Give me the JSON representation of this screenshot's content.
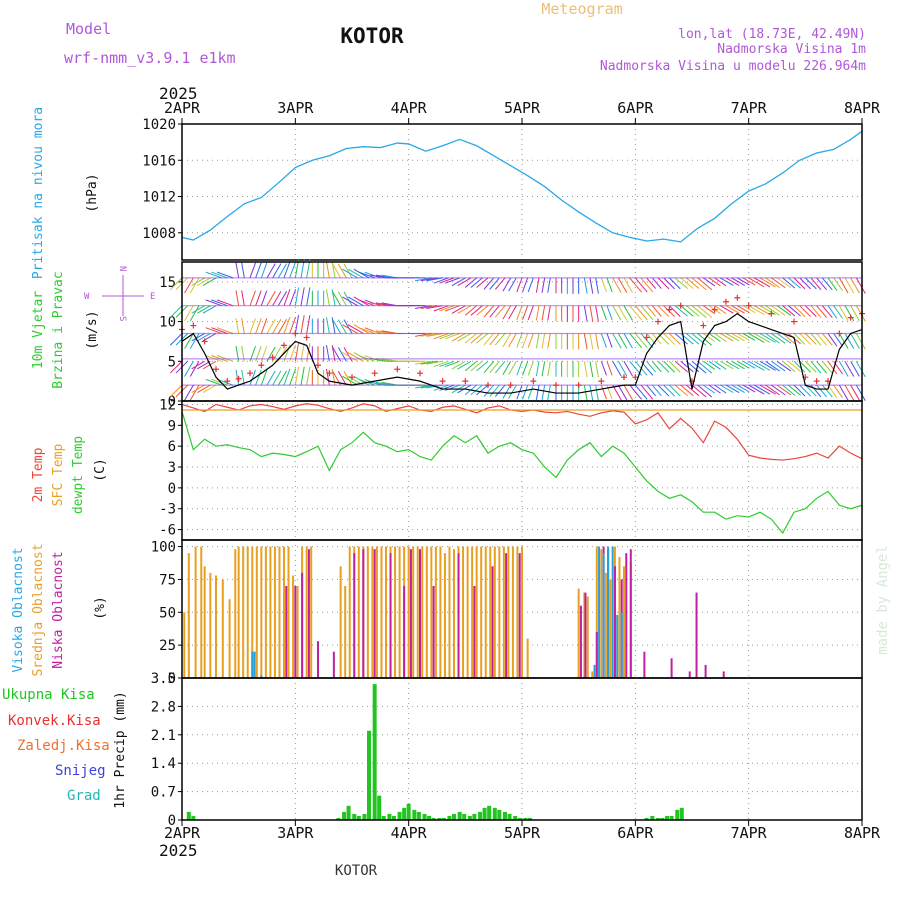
{
  "header": {
    "model_label": "Model",
    "model_name": "wrf-nmm_v3.9.1 e1km",
    "station_title": "KOTOR",
    "meteogram_label": "Meteogram",
    "coords": "lon,lat (18.73E, 42.49N)",
    "altitude": "Nadmorska Visina 1m",
    "model_altitude": "Nadmorska Visina u modelu 226.964m"
  },
  "footer": {
    "station_name": "KOTOR",
    "credit": "made by Angel"
  },
  "time_axis": {
    "year": "2025",
    "ticks": [
      "2APR",
      "3APR",
      "4APR",
      "5APR",
      "6APR",
      "7APR",
      "8APR"
    ]
  },
  "colors": {
    "pressure": "#29a8e8",
    "temp2m": "#e8473a",
    "sfc_temp": "#e8a02a",
    "dewpt": "#2ecc2e",
    "cloud_high": "#2a9fd8",
    "cloud_mid": "#e8a020",
    "cloud_low": "#c020a0",
    "precip_total": "#22c422",
    "precip_conv": "#e83030",
    "precip_frozen": "#f07030",
    "snow": "#4040e0",
    "hail": "#20b8b8"
  },
  "chart_data": [
    {
      "type": "line",
      "panel": "pressure",
      "title": "",
      "ylabel_name": "Pritisak na nivou mora",
      "ylabel_unit": "(hPa)",
      "ylim": [
        1005,
        1020
      ],
      "y_ticks": [
        "1008",
        "1012",
        "1016",
        "1020"
      ],
      "x": [
        0,
        0.1,
        0.25,
        0.4,
        0.55,
        0.7,
        0.85,
        1.0,
        1.15,
        1.3,
        1.45,
        1.6,
        1.75,
        1.9,
        2.0,
        2.15,
        2.3,
        2.45,
        2.6,
        2.75,
        2.9,
        3.05,
        3.2,
        3.35,
        3.5,
        3.65,
        3.8,
        3.95,
        4.1,
        4.25,
        4.4,
        4.55,
        4.7,
        4.85,
        5.0,
        5.15,
        5.3,
        5.45,
        5.6,
        5.75,
        5.9,
        6.0
      ],
      "series": [
        {
          "values": [
            1007.5,
            1007.2,
            1008.3,
            1009.8,
            1011.2,
            1011.9,
            1013.5,
            1015.2,
            1016.0,
            1016.5,
            1017.3,
            1017.5,
            1017.4,
            1017.9,
            1017.8,
            1017.0,
            1017.6,
            1018.3,
            1017.6,
            1016.5,
            1015.4,
            1014.3,
            1013.1,
            1011.6,
            1010.3,
            1009.1,
            1008.0,
            1007.5,
            1007.1,
            1007.3,
            1007.0,
            1008.5,
            1009.6,
            1011.2,
            1012.6,
            1013.4,
            1014.6,
            1016.0,
            1016.8,
            1017.2,
            1018.3,
            1019.2
          ]
        }
      ]
    },
    {
      "type": "line",
      "panel": "wind",
      "ylabel_name": "10m Vjetar",
      "ylabel_sub": "Brzina i Pravac",
      "ylabel_unit": "(m/s)",
      "compass_n": "N",
      "compass_s": "S",
      "compass_w": "W",
      "compass_e": "E",
      "ylim": [
        0,
        17.5
      ],
      "y_ticks": [
        "0",
        "5",
        "10",
        "15"
      ],
      "x": [
        0,
        0.1,
        0.2,
        0.3,
        0.4,
        0.5,
        0.6,
        0.7,
        0.8,
        0.9,
        1.0,
        1.1,
        1.2,
        1.3,
        1.5,
        1.7,
        1.9,
        2.1,
        2.3,
        2.5,
        2.7,
        2.9,
        3.1,
        3.3,
        3.5,
        3.7,
        3.9,
        4.0,
        4.1,
        4.2,
        4.3,
        4.4,
        4.5,
        4.6,
        4.7,
        4.8,
        4.9,
        5.0,
        5.2,
        5.4,
        5.5,
        5.6,
        5.7,
        5.8,
        5.9,
        6.0
      ],
      "series": [
        {
          "name": "",
          "values": [
            7.5,
            8.5,
            6.0,
            3.0,
            1.5,
            2.0,
            2.5,
            3.5,
            4.5,
            6.0,
            7.5,
            7.0,
            3.5,
            2.5,
            2.0,
            2.5,
            3.0,
            2.5,
            1.5,
            1.5,
            1.0,
            1.0,
            1.5,
            1.0,
            1.0,
            1.5,
            2.0,
            2.0,
            6.0,
            8.0,
            9.5,
            10.0,
            1.5,
            7.5,
            9.5,
            10.0,
            11.0,
            10.0,
            9.0,
            8.0,
            2.0,
            1.5,
            1.5,
            6.5,
            8.5,
            9.0
          ]
        }
      ],
      "gust_values": [
        9.0,
        9.5,
        7.5,
        4.0,
        2.5,
        2.8,
        3.5,
        4.5,
        5.5,
        7.0,
        8.5,
        8.0,
        4.5,
        3.5,
        3.0,
        3.5,
        4.0,
        3.5,
        2.5,
        2.5,
        2.0,
        2.0,
        2.5,
        2.0,
        2.0,
        2.5,
        3.0,
        3.0,
        8.0,
        10.0,
        11.5,
        12.0,
        2.5,
        9.5,
        11.5,
        12.5,
        13.0,
        12.0,
        11.0,
        10.0,
        3.0,
        2.5,
        2.5,
        8.5,
        10.5,
        11.0
      ],
      "barb_directions_deg": [
        135,
        120,
        150,
        200,
        260,
        290,
        300,
        290,
        280,
        270,
        260,
        240,
        210,
        200,
        190,
        180,
        180,
        170,
        160,
        150,
        140,
        130,
        120,
        110,
        100,
        90,
        90,
        80,
        70,
        60,
        50,
        50,
        45,
        40,
        40,
        35,
        30,
        30,
        30,
        35,
        40,
        45,
        50,
        55,
        60,
        60
      ]
    },
    {
      "type": "line",
      "panel": "temperature",
      "ylabel_name_1": "2m Temp",
      "ylabel_name_2": "SFC Temp",
      "ylabel_name_3": "dewpt Temp",
      "ylabel_unit": "(C)",
      "ylim": [
        -7.5,
        12.5
      ],
      "y_ticks": [
        "-6",
        "-3",
        "0",
        "3",
        "6",
        "9",
        "12"
      ],
      "x": [
        0,
        0.1,
        0.2,
        0.3,
        0.4,
        0.5,
        0.6,
        0.7,
        0.8,
        0.9,
        1.0,
        1.1,
        1.2,
        1.3,
        1.4,
        1.5,
        1.6,
        1.7,
        1.8,
        1.9,
        2.0,
        2.1,
        2.2,
        2.3,
        2.4,
        2.5,
        2.6,
        2.7,
        2.8,
        2.9,
        3.0,
        3.1,
        3.2,
        3.3,
        3.4,
        3.5,
        3.6,
        3.7,
        3.8,
        3.9,
        4.0,
        4.1,
        4.2,
        4.3,
        4.4,
        4.5,
        4.6,
        4.7,
        4.8,
        4.9,
        5.0,
        5.1,
        5.2,
        5.3,
        5.4,
        5.5,
        5.6,
        5.7,
        5.8,
        5.9,
        6.0
      ],
      "series": [
        {
          "name": "2m Temp",
          "values": [
            12.0,
            11.5,
            11.0,
            12.0,
            11.6,
            11.2,
            11.8,
            12.0,
            11.7,
            11.3,
            11.8,
            12.1,
            11.9,
            11.4,
            11.0,
            11.5,
            12.1,
            11.8,
            11.0,
            11.4,
            11.8,
            11.2,
            11.0,
            11.6,
            11.8,
            11.3,
            10.8,
            11.5,
            11.8,
            11.2,
            11.0,
            11.2,
            10.9,
            10.8,
            11.0,
            10.6,
            10.3,
            10.8,
            11.1,
            10.9,
            9.2,
            9.8,
            10.8,
            8.5,
            10.0,
            8.6,
            6.5,
            9.6,
            8.7,
            7.0,
            4.7,
            4.3,
            4.1,
            4.0,
            4.2,
            4.5,
            5.0,
            4.3,
            6.0,
            5.0,
            4.2
          ]
        },
        {
          "name": "SFC Temp",
          "values": [
            11.2,
            11.2,
            11.2,
            11.2,
            11.2,
            11.2,
            11.2,
            11.2,
            11.2,
            11.2,
            11.2,
            11.2,
            11.2,
            11.2,
            11.2,
            11.2,
            11.2,
            11.2,
            11.2,
            11.2,
            11.2,
            11.2,
            11.2,
            11.2,
            11.2,
            11.2,
            11.2,
            11.2,
            11.2,
            11.2,
            11.2,
            11.2,
            11.2,
            11.2,
            11.2,
            11.2,
            11.2,
            11.2,
            11.2,
            11.2,
            11.2,
            11.2,
            11.2,
            11.2,
            11.2,
            11.2,
            11.2,
            11.2,
            11.2,
            11.2,
            11.2,
            11.2,
            11.2,
            11.2,
            11.2,
            11.2,
            11.2,
            11.2,
            11.2,
            11.2,
            11.2
          ]
        },
        {
          "name": "dewpt Temp",
          "values": [
            11.0,
            5.5,
            7.0,
            6.0,
            6.2,
            5.8,
            5.5,
            4.5,
            5.0,
            4.8,
            4.5,
            5.2,
            6.0,
            2.5,
            5.5,
            6.5,
            8.0,
            6.5,
            6.0,
            5.2,
            5.5,
            4.5,
            4.0,
            6.0,
            7.5,
            6.5,
            7.5,
            5.0,
            6.0,
            6.5,
            5.5,
            5.0,
            3.0,
            1.5,
            4.0,
            5.5,
            6.5,
            4.5,
            6.0,
            5.0,
            3.0,
            1.0,
            -0.5,
            -1.5,
            -1.0,
            -2.0,
            -3.5,
            -3.5,
            -4.5,
            -4.0,
            -4.2,
            -3.5,
            -4.5,
            -6.5,
            -3.5,
            -3.0,
            -1.5,
            -0.5,
            -2.5,
            -3.0,
            -2.5
          ]
        }
      ]
    },
    {
      "type": "bar",
      "panel": "cloud",
      "ylabel_name_1": "Visoka Oblacnost",
      "ylabel_name_2": "Srednja Oblacnost",
      "ylabel_name_3": "Niska Oblacnost",
      "ylabel_unit": "(%)",
      "ylim": [
        0,
        105
      ],
      "y_ticks": [
        "0",
        "25",
        "50",
        "75",
        "100"
      ],
      "series": [
        {
          "name": "mid",
          "x": [
            0.02,
            0.06,
            0.12,
            0.17,
            0.2,
            0.25,
            0.3,
            0.36,
            0.42,
            0.47,
            0.5,
            0.54,
            0.58,
            0.62,
            0.66,
            0.7,
            0.74,
            0.78,
            0.82,
            0.86,
            0.9,
            0.94,
            0.98,
            1.02,
            1.06,
            1.1,
            1.14,
            1.4,
            1.44,
            1.48,
            1.52,
            1.56,
            1.6,
            1.64,
            1.68,
            1.72,
            1.76,
            1.8,
            1.84,
            1.88,
            1.92,
            1.96,
            2.0,
            2.04,
            2.08,
            2.12,
            2.16,
            2.2,
            2.24,
            2.28,
            2.32,
            2.36,
            2.4,
            2.44,
            2.48,
            2.52,
            2.56,
            2.6,
            2.64,
            2.68,
            2.72,
            2.76,
            2.8,
            2.84,
            2.88,
            2.92,
            2.96,
            3.0,
            3.05,
            3.5,
            3.55,
            3.58,
            3.62,
            3.66,
            3.7,
            3.74,
            3.78,
            3.82,
            3.86,
            3.9,
            3.96
          ],
          "values": [
            50,
            95,
            100,
            100,
            85,
            80,
            78,
            75,
            60,
            98,
            100,
            100,
            100,
            100,
            100,
            100,
            100,
            100,
            100,
            100,
            100,
            100,
            78,
            70,
            100,
            100,
            100,
            85,
            70,
            100,
            100,
            100,
            100,
            100,
            100,
            100,
            100,
            100,
            100,
            100,
            100,
            100,
            100,
            100,
            100,
            100,
            100,
            100,
            100,
            100,
            95,
            100,
            98,
            100,
            100,
            100,
            100,
            100,
            100,
            100,
            100,
            100,
            100,
            100,
            100,
            100,
            100,
            100,
            30,
            68,
            65,
            62,
            5,
            100,
            98,
            80,
            75,
            100,
            92,
            85,
            88
          ]
        },
        {
          "name": "low",
          "x": [
            0.64,
            0.92,
            1.0,
            1.06,
            1.12,
            1.2,
            1.34,
            1.52,
            1.6,
            1.7,
            1.84,
            1.96,
            2.02,
            2.1,
            2.22,
            2.44,
            2.58,
            2.74,
            2.86,
            2.98,
            3.52,
            3.56,
            3.66,
            3.72,
            3.76,
            3.82,
            3.88,
            3.92,
            3.96,
            4.08,
            4.32,
            4.48,
            4.54,
            4.62,
            4.78
          ],
          "values": [
            20,
            70,
            70,
            80,
            98,
            28,
            20,
            95,
            98,
            98,
            95,
            70,
            98,
            98,
            70,
            95,
            70,
            85,
            95,
            95,
            55,
            65,
            35,
            100,
            98,
            85,
            75,
            95,
            98,
            20,
            15,
            5,
            65,
            10,
            5
          ]
        },
        {
          "name": "high",
          "x": [
            0.62,
            0.64,
            0.7,
            3.64,
            3.68,
            3.72,
            3.76,
            3.8,
            3.84,
            3.88
          ],
          "values": [
            20,
            20,
            2,
            10,
            100,
            95,
            100,
            100,
            48,
            50
          ]
        }
      ]
    },
    {
      "type": "bar",
      "panel": "precip",
      "ylabel_name_1": "Ukupna Kisa",
      "ylabel_name_2": "Konvek.Kisa",
      "ylabel_name_3": "Zaledj.Kisa",
      "ylabel_name_4": "Snijeg",
      "ylabel_name_5": "Grad",
      "ylabel_unit": "1hr Precip (mm)",
      "ylim": [
        0,
        3.5
      ],
      "y_ticks": [
        "0",
        "0.7",
        "1.4",
        "2.1",
        "2.8",
        "3.5"
      ],
      "series": [
        {
          "name": "total",
          "x": [
            0.06,
            0.1,
            1.38,
            1.43,
            1.47,
            1.52,
            1.56,
            1.61,
            1.65,
            1.7,
            1.74,
            1.78,
            1.83,
            1.87,
            1.92,
            1.96,
            2.0,
            2.05,
            2.09,
            2.14,
            2.18,
            2.22,
            2.27,
            2.31,
            2.36,
            2.4,
            2.45,
            2.49,
            2.54,
            2.58,
            2.63,
            2.67,
            2.71,
            2.76,
            2.8,
            2.85,
            2.89,
            2.94,
            2.98,
            3.03,
            3.07,
            4.1,
            4.15,
            4.2,
            4.24,
            4.28,
            4.32,
            4.37,
            4.41
          ],
          "values": [
            0.2,
            0.1,
            0.05,
            0.2,
            0.35,
            0.15,
            0.1,
            0.15,
            2.2,
            3.35,
            0.6,
            0.1,
            0.15,
            0.1,
            0.2,
            0.3,
            0.4,
            0.25,
            0.2,
            0.15,
            0.1,
            0.05,
            0.05,
            0.05,
            0.1,
            0.15,
            0.2,
            0.15,
            0.1,
            0.15,
            0.2,
            0.3,
            0.35,
            0.3,
            0.25,
            0.2,
            0.15,
            0.1,
            0.05,
            0.05,
            0.05,
            0.05,
            0.1,
            0.05,
            0.05,
            0.1,
            0.1,
            0.25,
            0.3
          ]
        }
      ]
    }
  ]
}
